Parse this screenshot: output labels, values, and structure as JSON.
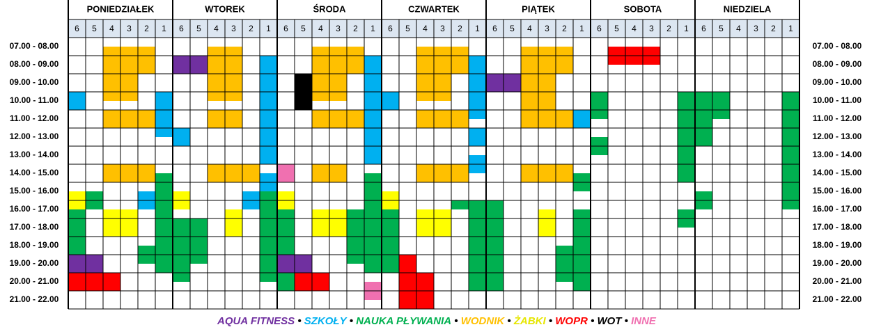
{
  "days": [
    "PONIEDZIAŁEK",
    "WTOREK",
    "ŚRODA",
    "CZWARTEK",
    "PIĄTEK",
    "SOBOTA",
    "NIEDZIELA"
  ],
  "lanes": [
    "6",
    "5",
    "4",
    "3",
    "2",
    "1"
  ],
  "times": [
    "07.00 - 08.00",
    "08.00 - 09.00",
    "09.00 - 10.00",
    "10.00 - 11.00",
    "11.00 - 12.00",
    "12.00 - 13.00",
    "13.00 - 14.00",
    "14.00 - 15.00",
    "15.00 - 16.00",
    "16.00 - 17.00",
    "17.00 - 18.00",
    "18.00 - 19.00",
    "19.00 - 20.00",
    "20.00 - 21.00",
    "21.00 - 22.00"
  ],
  "legend": [
    {
      "name": "AQUA FITNESS",
      "color": "#7030a0"
    },
    {
      "name": "SZKOŁY",
      "color": "#00b0f0"
    },
    {
      "name": "NAUKA PŁYWANIA",
      "color": "#00b050"
    },
    {
      "name": "WODNIK",
      "color": "#ffc000"
    },
    {
      "name": "ŻABKI",
      "color": "#ffff00"
    },
    {
      "name": "WOPR",
      "color": "#ff0000"
    },
    {
      "name": "WOT",
      "color": "#000000"
    },
    {
      "name": "INNE",
      "color": "#f070b0"
    }
  ],
  "separator": "•"
}
